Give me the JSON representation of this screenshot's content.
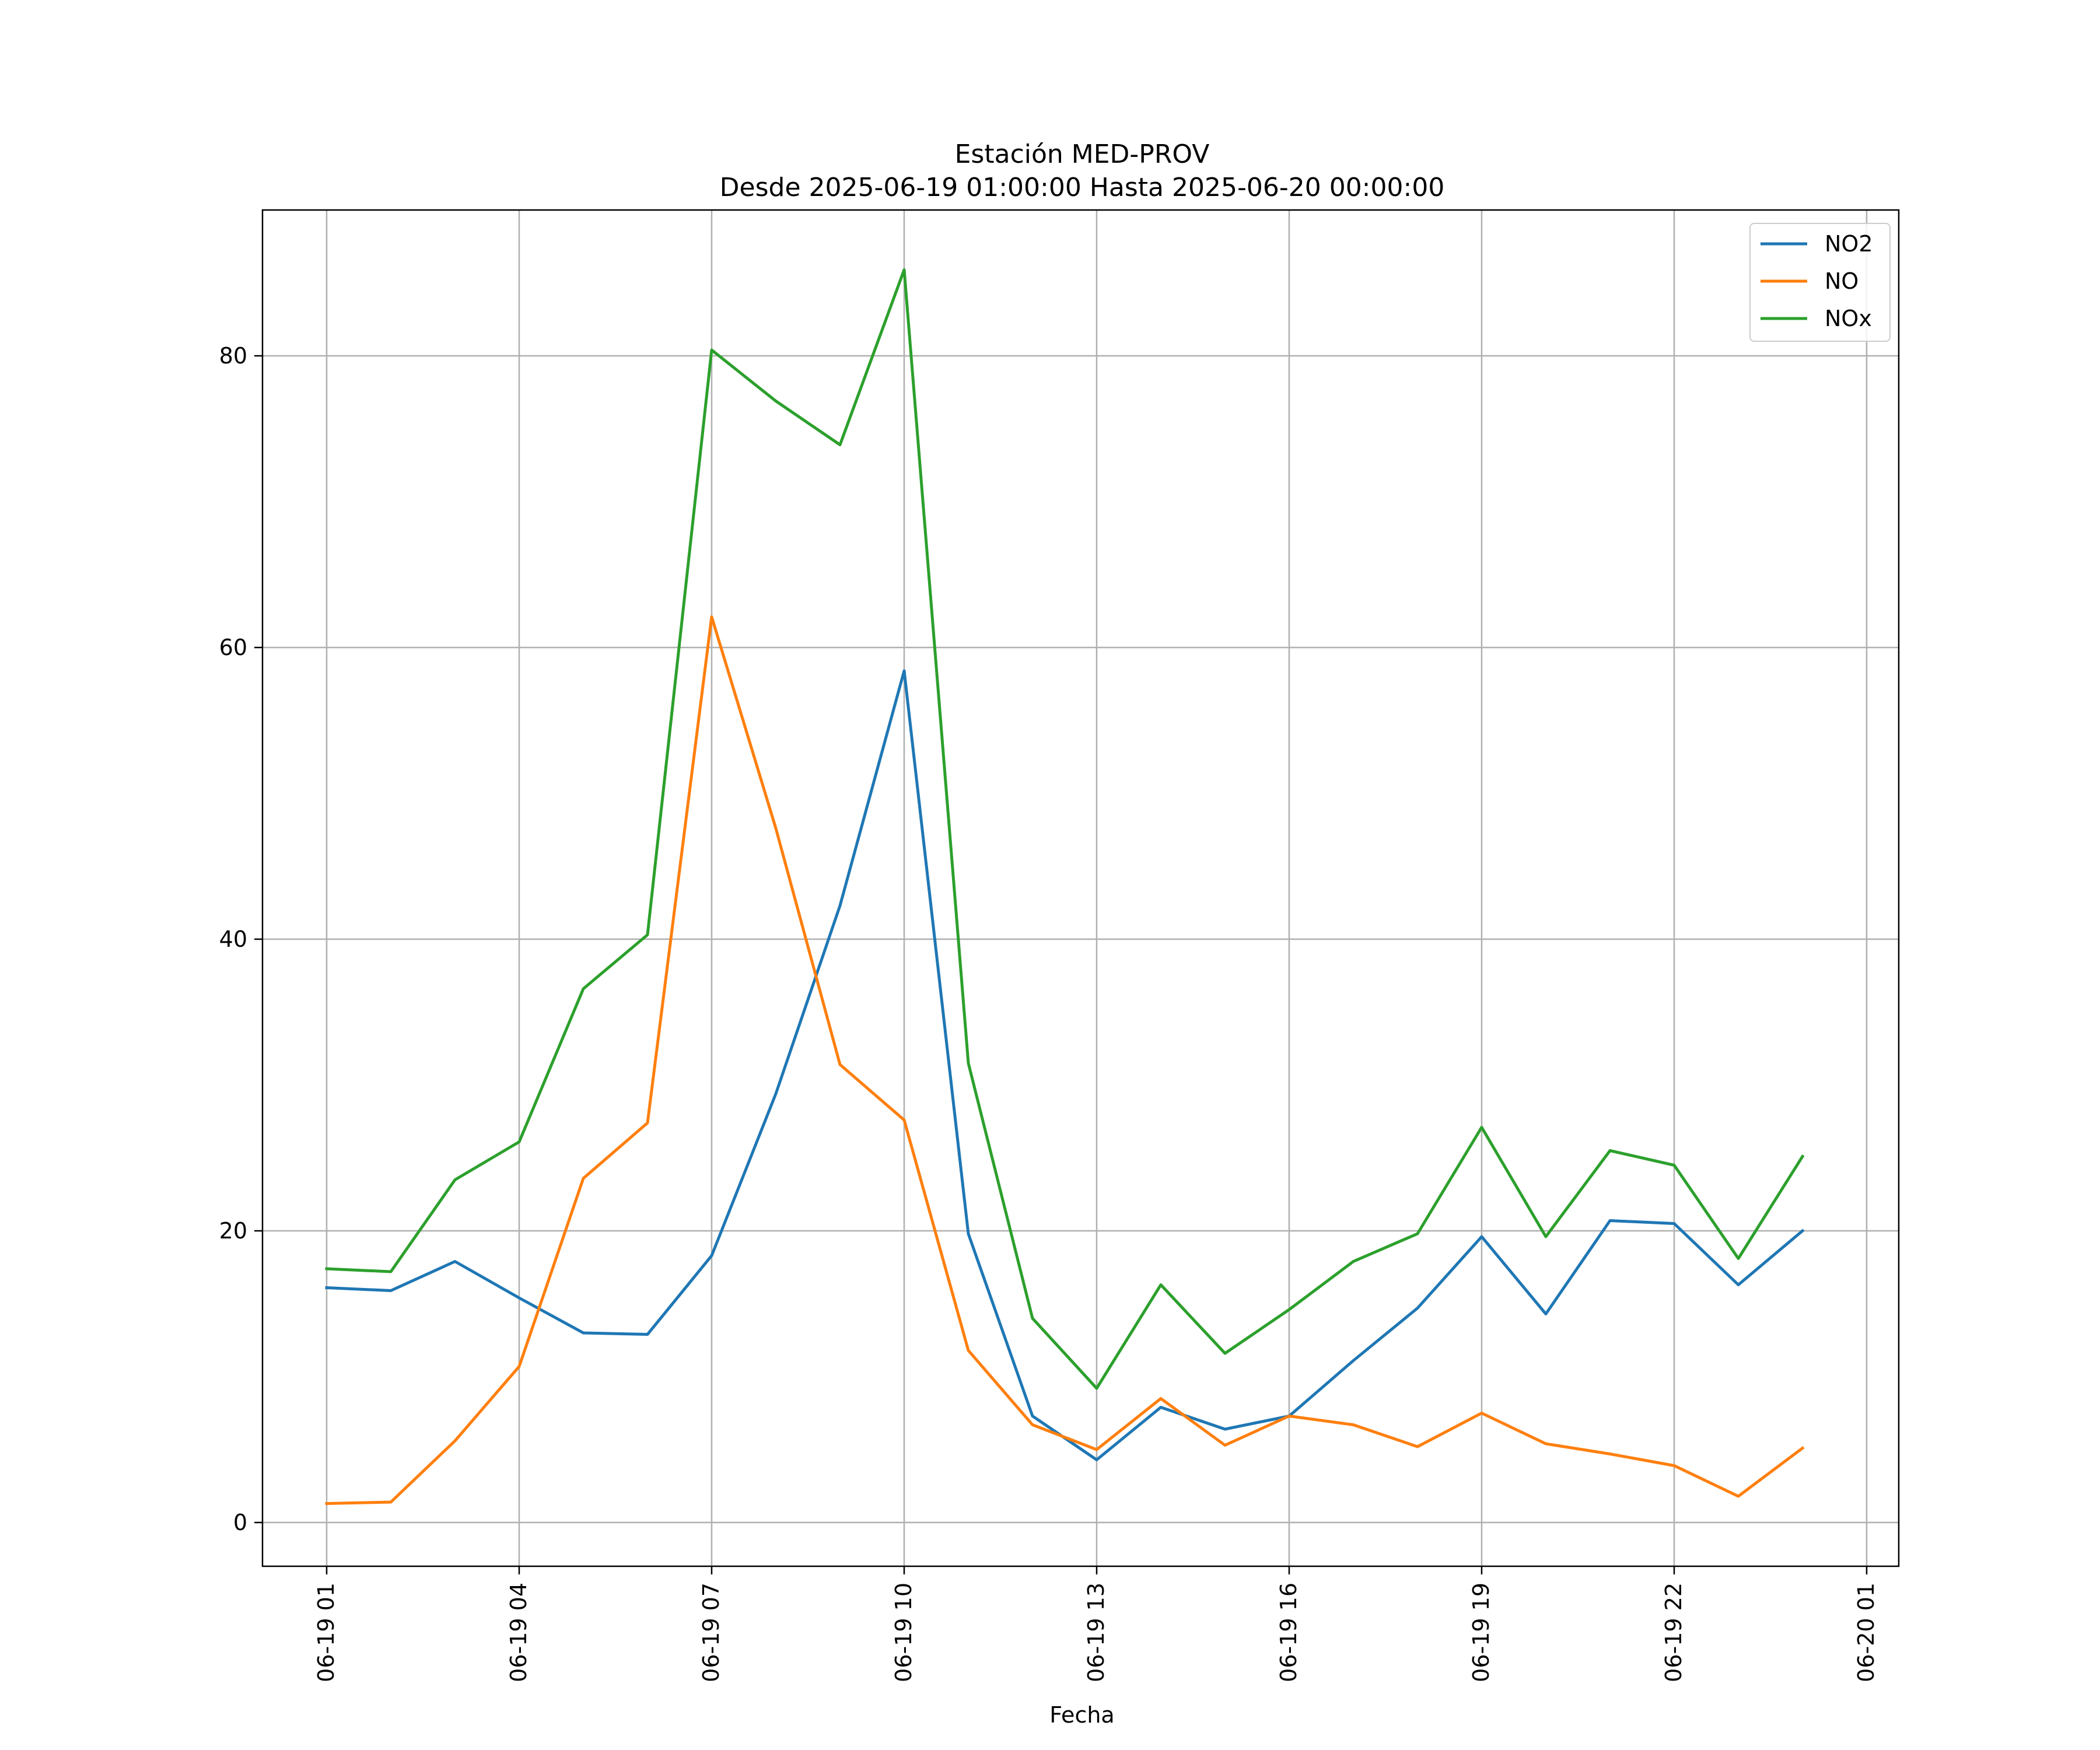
{
  "chart_data": {
    "type": "line",
    "title": "Estación MED-PROV",
    "subtitle": "Desde 2025-06-19 01:00:00 Hasta 2025-06-20 00:00:00",
    "xlabel": "Fecha",
    "ylabel": "",
    "x_unit": "hour",
    "x": [
      "2025-06-19 01:00",
      "2025-06-19 02:00",
      "2025-06-19 03:00",
      "2025-06-19 04:00",
      "2025-06-19 05:00",
      "2025-06-19 06:00",
      "2025-06-19 07:00",
      "2025-06-19 08:00",
      "2025-06-19 09:00",
      "2025-06-19 10:00",
      "2025-06-19 11:00",
      "2025-06-19 12:00",
      "2025-06-19 13:00",
      "2025-06-19 14:00",
      "2025-06-19 15:00",
      "2025-06-19 16:00",
      "2025-06-19 17:00",
      "2025-06-19 18:00",
      "2025-06-19 19:00",
      "2025-06-19 20:00",
      "2025-06-19 21:00",
      "2025-06-19 22:00",
      "2025-06-19 23:00",
      "2025-06-20 00:00"
    ],
    "xlim": [
      "2025-06-19 00:00",
      "2025-06-20 01:30"
    ],
    "x_ticks": [
      {
        "value": "2025-06-19 01:00",
        "label": "06-19 01"
      },
      {
        "value": "2025-06-19 04:00",
        "label": "06-19 04"
      },
      {
        "value": "2025-06-19 07:00",
        "label": "06-19 07"
      },
      {
        "value": "2025-06-19 10:00",
        "label": "06-19 10"
      },
      {
        "value": "2025-06-19 13:00",
        "label": "06-19 13"
      },
      {
        "value": "2025-06-19 16:00",
        "label": "06-19 16"
      },
      {
        "value": "2025-06-19 19:00",
        "label": "06-19 19"
      },
      {
        "value": "2025-06-19 22:00",
        "label": "06-19 22"
      },
      {
        "value": "2025-06-20 01:00",
        "label": "06-20 01"
      }
    ],
    "ylim": [
      -3,
      90
    ],
    "y_ticks": [
      0,
      20,
      40,
      60,
      80
    ],
    "grid": true,
    "legend": "top-right",
    "series": [
      {
        "name": "NO2",
        "color": "#1f77b4",
        "values": [
          16.1,
          15.9,
          17.9,
          15.4,
          13.0,
          12.9,
          18.3,
          29.4,
          42.3,
          58.4,
          19.8,
          7.3,
          4.3,
          7.9,
          6.4,
          7.3,
          11.1,
          14.7,
          19.6,
          14.3,
          20.7,
          20.5,
          16.3,
          20.0
        ]
      },
      {
        "name": "NO",
        "color": "#ff7f0e",
        "values": [
          1.3,
          1.4,
          5.6,
          10.7,
          23.6,
          27.4,
          62.1,
          47.6,
          31.4,
          27.6,
          11.8,
          6.7,
          5.0,
          8.5,
          5.3,
          7.3,
          6.7,
          5.2,
          7.5,
          5.4,
          4.7,
          3.9,
          1.8,
          5.1
        ]
      },
      {
        "name": "NOx",
        "color": "#2ca02c",
        "values": [
          17.4,
          17.2,
          23.5,
          26.1,
          36.6,
          40.3,
          80.4,
          76.9,
          73.9,
          85.9,
          31.5,
          14.0,
          9.2,
          16.3,
          11.6,
          14.6,
          17.9,
          19.8,
          27.1,
          19.6,
          25.5,
          24.5,
          18.1,
          25.1
        ]
      }
    ]
  }
}
